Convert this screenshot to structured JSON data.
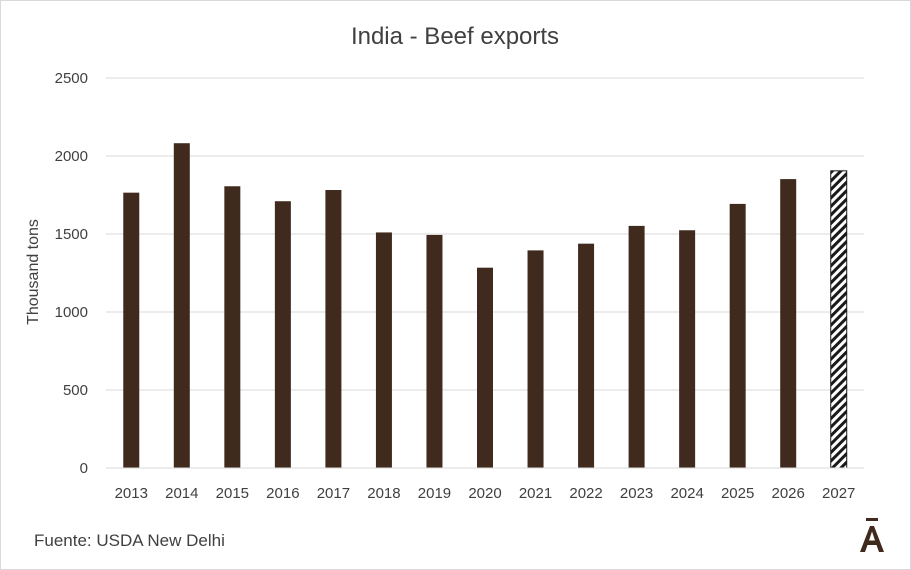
{
  "chart_data": {
    "type": "bar",
    "title": "India - Beef exports",
    "xlabel": "",
    "ylabel": "Thousand tons",
    "categories": [
      "2013",
      "2014",
      "2015",
      "2016",
      "2017",
      "2018",
      "2019",
      "2020",
      "2021",
      "2022",
      "2023",
      "2024",
      "2025",
      "2026",
      "2027"
    ],
    "values": [
      1765,
      2082,
      1806,
      1710,
      1782,
      1510,
      1494,
      1284,
      1395,
      1438,
      1552,
      1524,
      1693,
      1852,
      1905
    ],
    "forecast_categories": [
      "2027"
    ],
    "ylim": [
      0,
      2500
    ],
    "yticks": [
      "0",
      "500",
      "1000",
      "1500",
      "2000",
      "2500"
    ],
    "grid": true,
    "bar_color": "#3f2a1d",
    "forecast_style": "diagonal hatch"
  },
  "footer": {
    "source": "Fuente: USDA New Delhi",
    "logo_text": "Ā"
  }
}
